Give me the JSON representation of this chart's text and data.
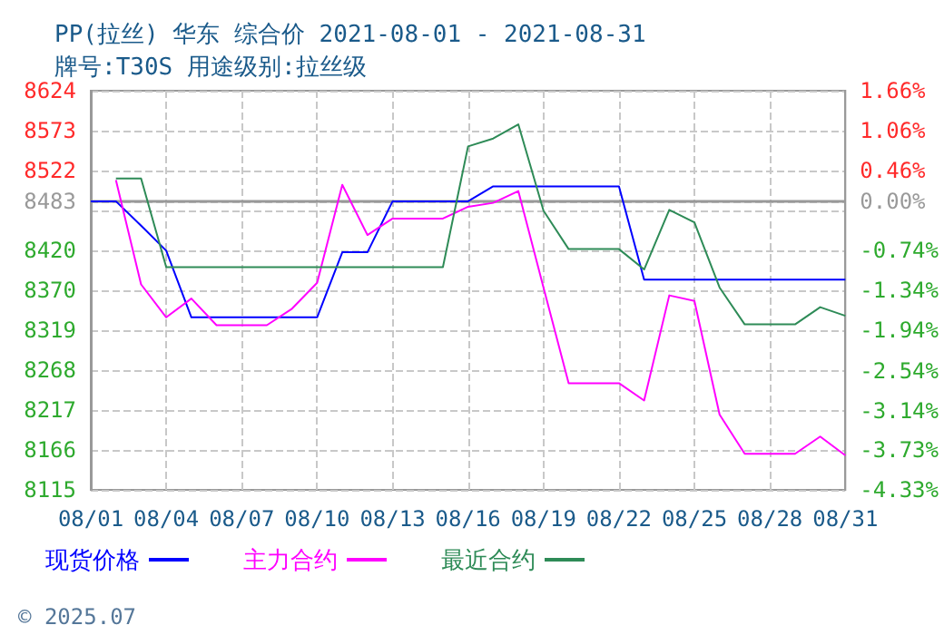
{
  "chart_data": {
    "type": "line",
    "title": "PP(拉丝) 华东 综合价 2021-08-01 - 2021-08-31",
    "subtitle": "牌号:T30S 用途级别:拉丝级",
    "categories": [
      "08/01",
      null,
      null,
      "08/04",
      null,
      null,
      "08/07",
      null,
      null,
      "08/10",
      null,
      null,
      "08/13",
      null,
      null,
      "08/16",
      null,
      null,
      "08/19",
      null,
      null,
      "08/22",
      null,
      null,
      "08/25",
      null,
      null,
      "08/28",
      null,
      null,
      "08/31"
    ],
    "series": [
      {
        "name": "现货价格",
        "color": "#0000ff",
        "values": [
          8483,
          8483,
          8452,
          8420,
          8335,
          8335,
          8335,
          8335,
          8335,
          8335,
          8418,
          8418,
          8483,
          8483,
          8483,
          8483,
          8502,
          8502,
          8502,
          8502,
          8502,
          8502,
          8383,
          8383,
          8383,
          8383,
          8383,
          8383,
          8383,
          8383,
          8383
        ]
      },
      {
        "name": "主力合约",
        "color": "#ff00ff",
        "values": [
          null,
          8510,
          8377,
          8335,
          8359,
          8325,
          8325,
          8325,
          8346,
          8379,
          8504,
          8440,
          8461,
          8461,
          8461,
          8476,
          8481,
          8496,
          8373,
          8251,
          8251,
          8251,
          8229,
          8363,
          8356,
          8211,
          8161,
          8161,
          8161,
          8183,
          8159
        ]
      },
      {
        "name": "最近合约",
        "color": "#2e8b57",
        "values": [
          null,
          8512,
          8512,
          8399,
          8399,
          8399,
          8399,
          8399,
          8399,
          8399,
          8399,
          8399,
          8399,
          8399,
          8399,
          8553,
          8563,
          8581,
          8471,
          8422,
          8422,
          8422,
          8396,
          8472,
          8456,
          8373,
          8326,
          8326,
          8326,
          8348,
          8337
        ]
      }
    ],
    "ylim": [
      8115,
      8624
    ],
    "yticks": [
      8115,
      8166,
      8217,
      8268,
      8319,
      8370,
      8420,
      {
        "value": 8471,
        "label": null
      },
      8483,
      8522,
      8573,
      8624
    ],
    "y2lim": [
      -4.33,
      1.66
    ],
    "y2ticks": [
      {
        "value": -4.33,
        "label": "-4.33%"
      },
      {
        "value": -3.73,
        "label": "-3.73%"
      },
      {
        "value": -3.14,
        "label": "-3.14%"
      },
      {
        "value": -2.54,
        "label": "-2.54%"
      },
      {
        "value": -1.94,
        "label": "-1.94%"
      },
      {
        "value": -1.34,
        "label": "-1.34%"
      },
      {
        "value": -0.74,
        "label": "-0.74%"
      },
      {
        "value": -0.15,
        "label": null
      },
      {
        "value": 0,
        "label": "0.00%"
      },
      {
        "value": 0.46,
        "label": "0.46%"
      },
      {
        "value": 1.06,
        "label": "1.06%"
      },
      {
        "value": 1.66,
        "label": "1.66%"
      }
    ],
    "ref_lines": [
      {
        "axis": "y",
        "value": 8483,
        "color": "#999999",
        "line_style": "solid"
      }
    ],
    "grid": true,
    "legend": "bottom",
    "marker": "none",
    "line_style": "solid",
    "annotations": [
      "© 2025.07"
    ]
  }
}
